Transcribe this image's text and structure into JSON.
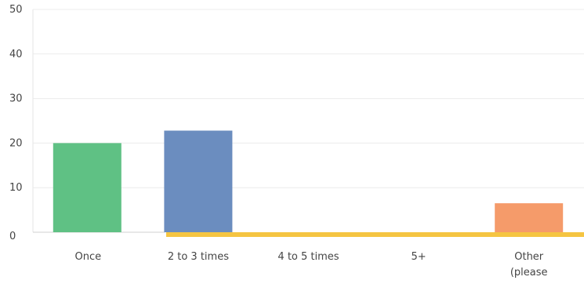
{
  "chart_data": {
    "type": "bar",
    "title": "",
    "xlabel": "",
    "ylabel": "",
    "categories": [
      "Once",
      "2 to 3 times",
      "4 to 5 times",
      "5+",
      "Other\n(please"
    ],
    "values": [
      20,
      22.8,
      0,
      0,
      6.5
    ],
    "colors": [
      "#5fc184",
      "#6b8dbf",
      "#f5c542",
      "#f5c542",
      "#f59b6a"
    ],
    "baseline_color": "#f5c542",
    "ylim": [
      0,
      50
    ],
    "yticks": [
      "0",
      "10",
      "20",
      "30",
      "40",
      "50"
    ],
    "grid": true
  }
}
